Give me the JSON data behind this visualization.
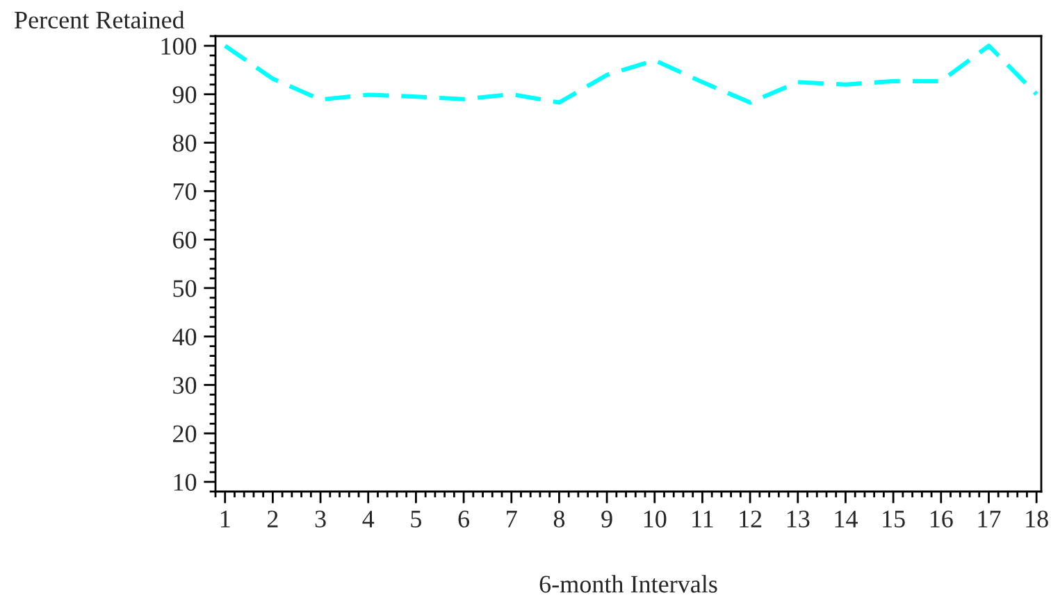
{
  "chart_data": {
    "type": "line",
    "xlabel": "6-month Intervals",
    "ylabel": "Percent Retained",
    "x": [
      1,
      2,
      3,
      4,
      5,
      6,
      7,
      8,
      9,
      10,
      11,
      12,
      13,
      14,
      15,
      16,
      17,
      18
    ],
    "series": [
      {
        "color": "#00ffff",
        "values": [
          100,
          93.2,
          88.9,
          89.9,
          89.5,
          89,
          90,
          88.3,
          94,
          97,
          92.5,
          88.3,
          92.5,
          92,
          92.7,
          92.7,
          100,
          90
        ]
      }
    ],
    "xlim": [
      0.8,
      18.1
    ],
    "xticks": [
      1,
      2,
      3,
      4,
      5,
      6,
      7,
      8,
      9,
      10,
      11,
      12,
      13,
      14,
      15,
      16,
      17,
      18
    ],
    "ylim": [
      8,
      102
    ],
    "yticks": [
      10,
      20,
      30,
      40,
      50,
      60,
      70,
      80,
      90,
      100
    ],
    "line_style": "dashed",
    "marker": "none",
    "grid": false
  }
}
